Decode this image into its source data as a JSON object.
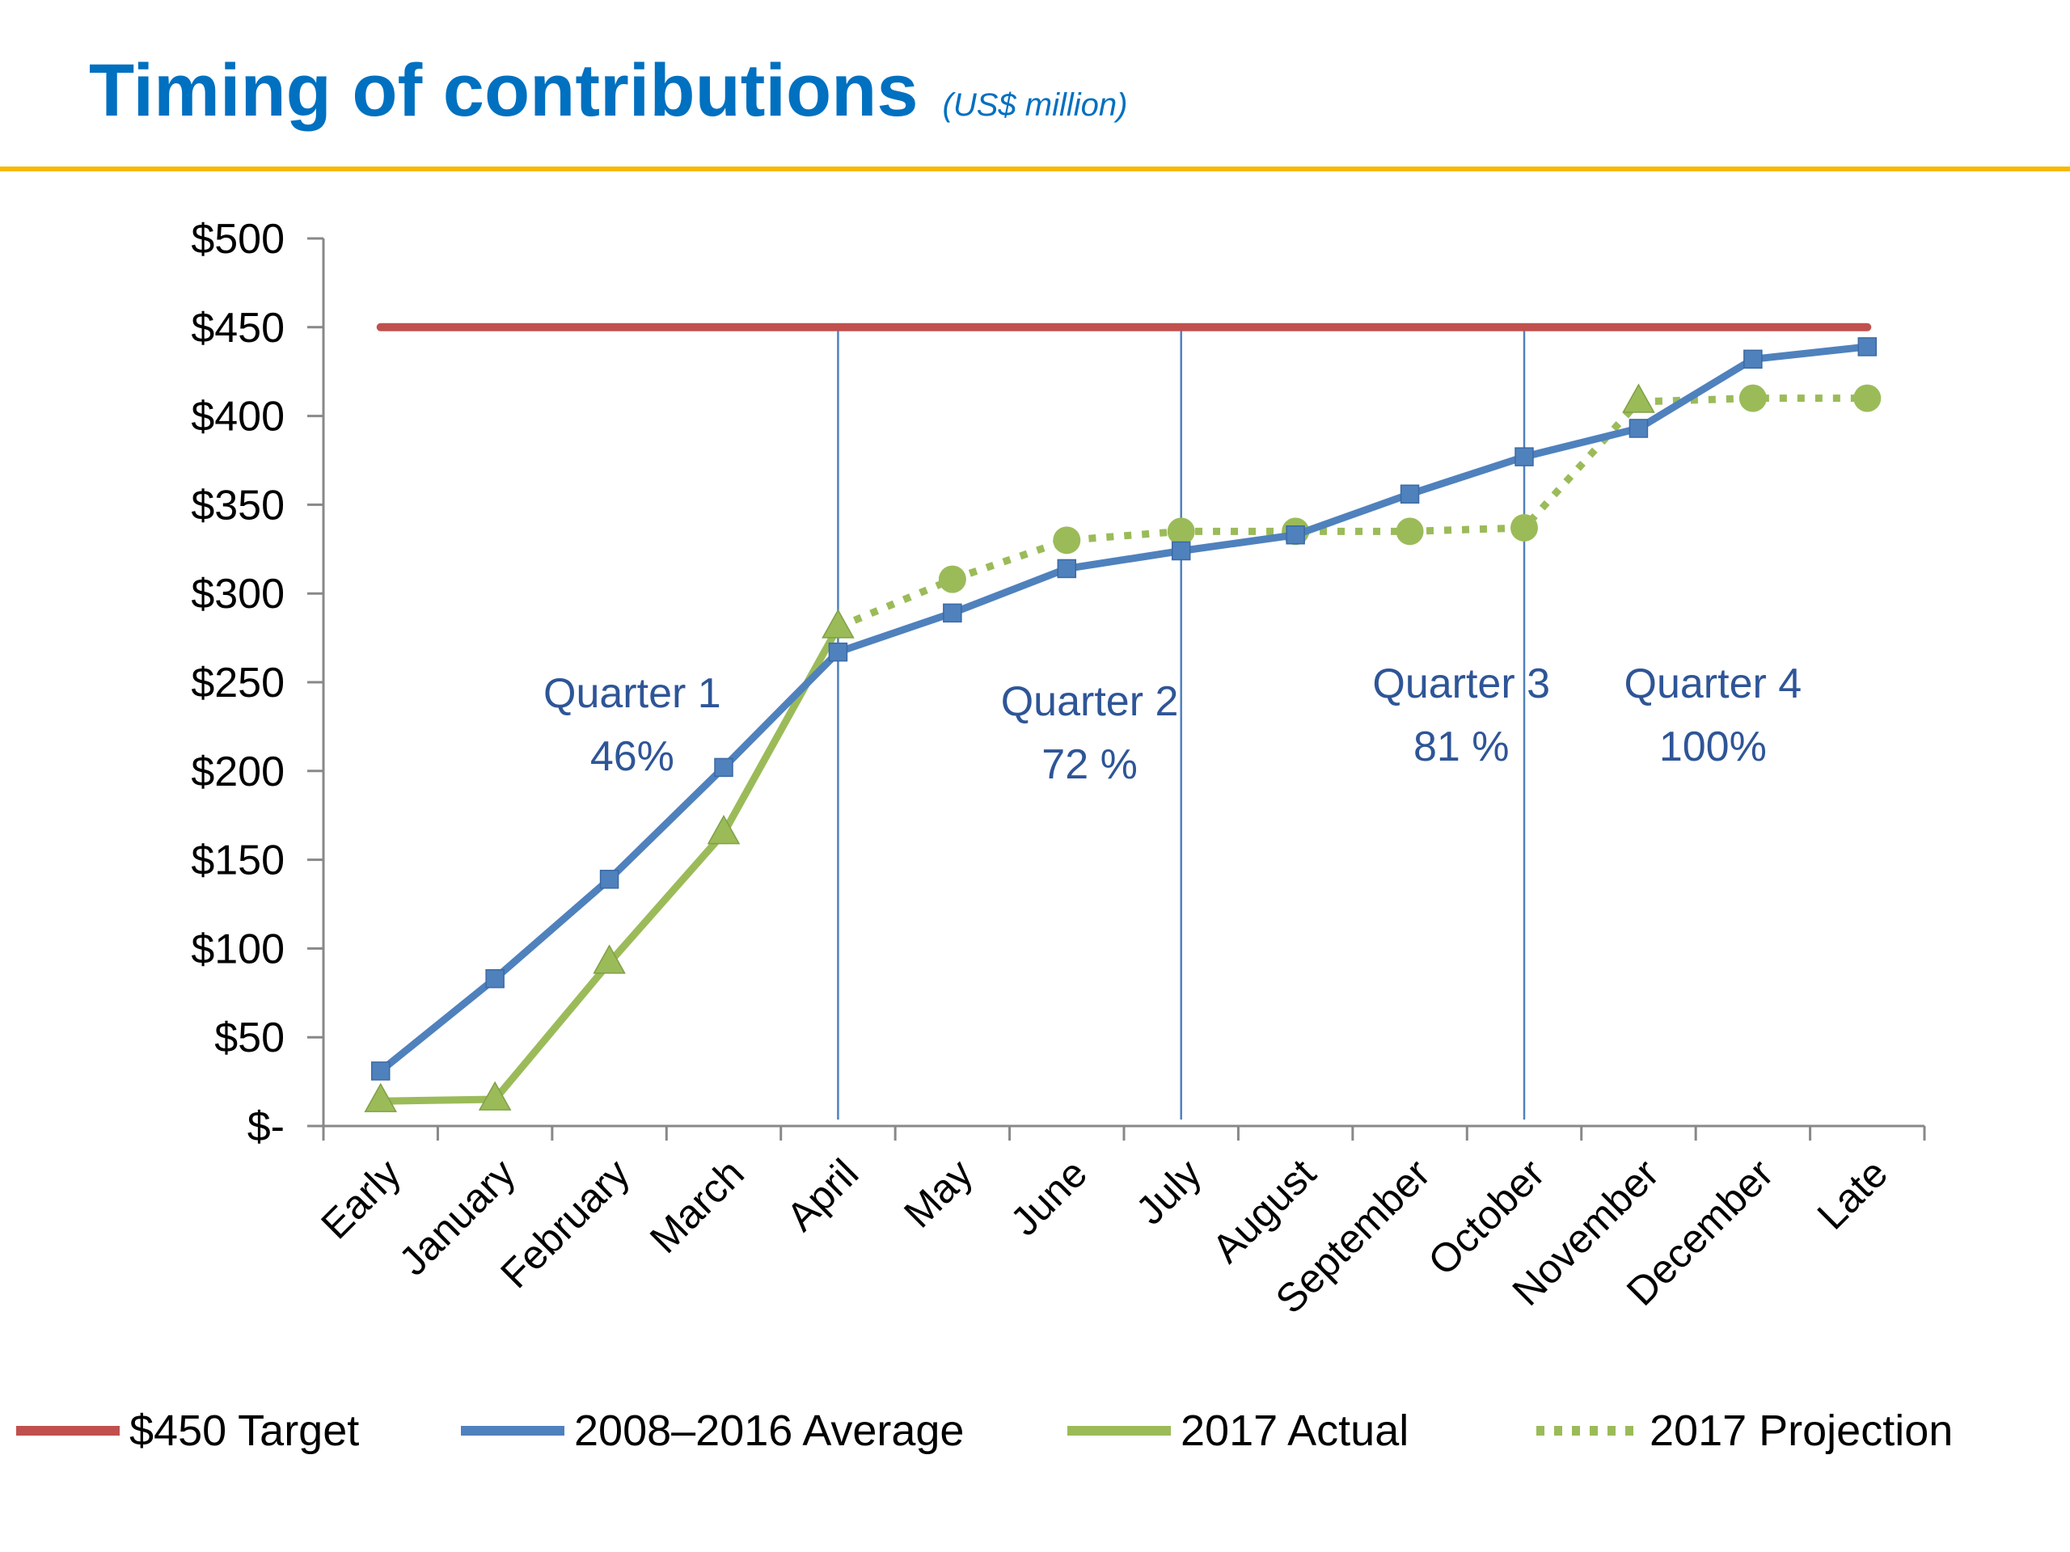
{
  "header": {
    "title": "Timing of contributions",
    "subtitle": "(US$ million)"
  },
  "colors": {
    "target": "#C0504D",
    "average": "#4F81BD",
    "actual": "#9BBB59",
    "projection": "#9BBB59",
    "quarter_divider": "#4F81BD",
    "quarter_text": "#2E5597",
    "title": "#0070C0",
    "rule": "#F7B900"
  },
  "chart_data": {
    "type": "line",
    "title": "Timing of contributions",
    "subtitle": "(US$ million)",
    "ylim": [
      0,
      500
    ],
    "y_ticks": [
      0,
      50,
      100,
      150,
      200,
      250,
      300,
      350,
      400,
      450,
      500
    ],
    "y_tick_labels": [
      "$-",
      "$50",
      "$100",
      "$150",
      "$200",
      "$250",
      "$300",
      "$350",
      "$400",
      "$450",
      "$500"
    ],
    "categories": [
      "Early",
      "January",
      "February",
      "March",
      "April",
      "May",
      "June",
      "July",
      "August",
      "September",
      "October",
      "November",
      "December",
      "Late"
    ],
    "grid": false,
    "legend_position": "bottom",
    "series": [
      {
        "name": "$450 Target",
        "style": "solid",
        "marker": "none",
        "values": [
          450,
          450,
          450,
          450,
          450,
          450,
          450,
          450,
          450,
          450,
          450,
          450,
          450,
          450
        ]
      },
      {
        "name": "2008–2016 Average",
        "style": "solid",
        "marker": "square",
        "values": [
          31,
          83,
          139,
          202,
          267,
          289,
          314,
          324,
          333,
          356,
          377,
          393,
          432,
          439
        ]
      },
      {
        "name": "2017 Actual",
        "style": "solid",
        "marker": "triangle",
        "values": [
          14,
          15,
          92,
          165,
          281,
          null,
          null,
          null,
          null,
          null,
          null,
          null,
          null,
          null
        ]
      },
      {
        "name": "2017 Projection",
        "style": "dotted",
        "marker": "circle",
        "values": [
          null,
          null,
          null,
          null,
          281,
          308,
          330,
          335,
          335,
          335,
          337,
          408,
          410,
          410
        ],
        "point_markers": [
          "none",
          "none",
          "none",
          "none",
          "none",
          "circle",
          "circle",
          "circle",
          "circle",
          "circle",
          "circle",
          "triangle",
          "circle",
          "circle"
        ]
      }
    ],
    "quarter_dividers_after": [
      "April",
      "July",
      "October"
    ],
    "annotations": [
      {
        "label": "Quarter 1",
        "value": "46%",
        "category": "February"
      },
      {
        "label": "Quarter 2",
        "value": "72 %",
        "category": "June"
      },
      {
        "label": "Quarter 3",
        "value": "81 %",
        "category": "September"
      },
      {
        "label": "Quarter 4",
        "value": "100%",
        "category": "November"
      }
    ]
  }
}
